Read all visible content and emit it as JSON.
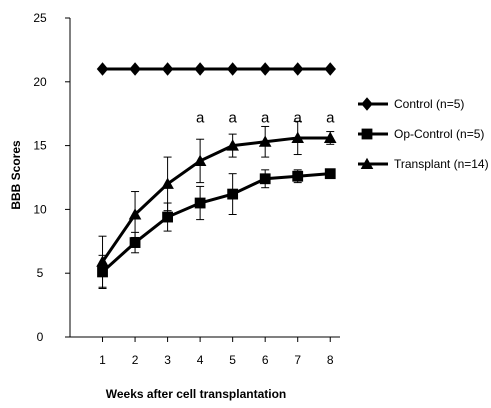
{
  "chart_data": {
    "type": "line",
    "title": "",
    "xlabel": "Weeks after cell transplantation",
    "ylabel": "BBB Scores",
    "x": [
      1,
      2,
      3,
      4,
      5,
      6,
      7,
      8
    ],
    "xlim": [
      0,
      8.3
    ],
    "ylim": [
      0,
      25
    ],
    "yticks": [
      0,
      5,
      10,
      15,
      20,
      25
    ],
    "grid": false,
    "legend_position": "right",
    "series": [
      {
        "name": "Control (n=5)",
        "marker": "diamond",
        "values": [
          21,
          21,
          21,
          21,
          21,
          21,
          21,
          21
        ],
        "errors": [
          0,
          0,
          0,
          0,
          0,
          0,
          0,
          0
        ]
      },
      {
        "name": "Op-Control (n=5)",
        "marker": "square",
        "values": [
          5.1,
          7.4,
          9.4,
          10.5,
          11.2,
          12.4,
          12.6,
          12.8
        ],
        "errors": [
          1.3,
          0.8,
          1.1,
          1.3,
          1.6,
          0.7,
          0.5,
          0.3
        ]
      },
      {
        "name": "Transplant (n=14)",
        "marker": "triangle",
        "values": [
          5.9,
          9.6,
          12.0,
          13.8,
          15.0,
          15.3,
          15.6,
          15.6
        ],
        "errors": [
          2.0,
          1.8,
          2.1,
          1.7,
          0.9,
          1.2,
          1.3,
          0.5
        ]
      }
    ],
    "annotations": [
      {
        "x": 4,
        "y": 16.8,
        "text": "a"
      },
      {
        "x": 5,
        "y": 16.8,
        "text": "a"
      },
      {
        "x": 6,
        "y": 16.8,
        "text": "a"
      },
      {
        "x": 7,
        "y": 16.8,
        "text": "a"
      },
      {
        "x": 8,
        "y": 16.8,
        "text": "a"
      }
    ]
  }
}
